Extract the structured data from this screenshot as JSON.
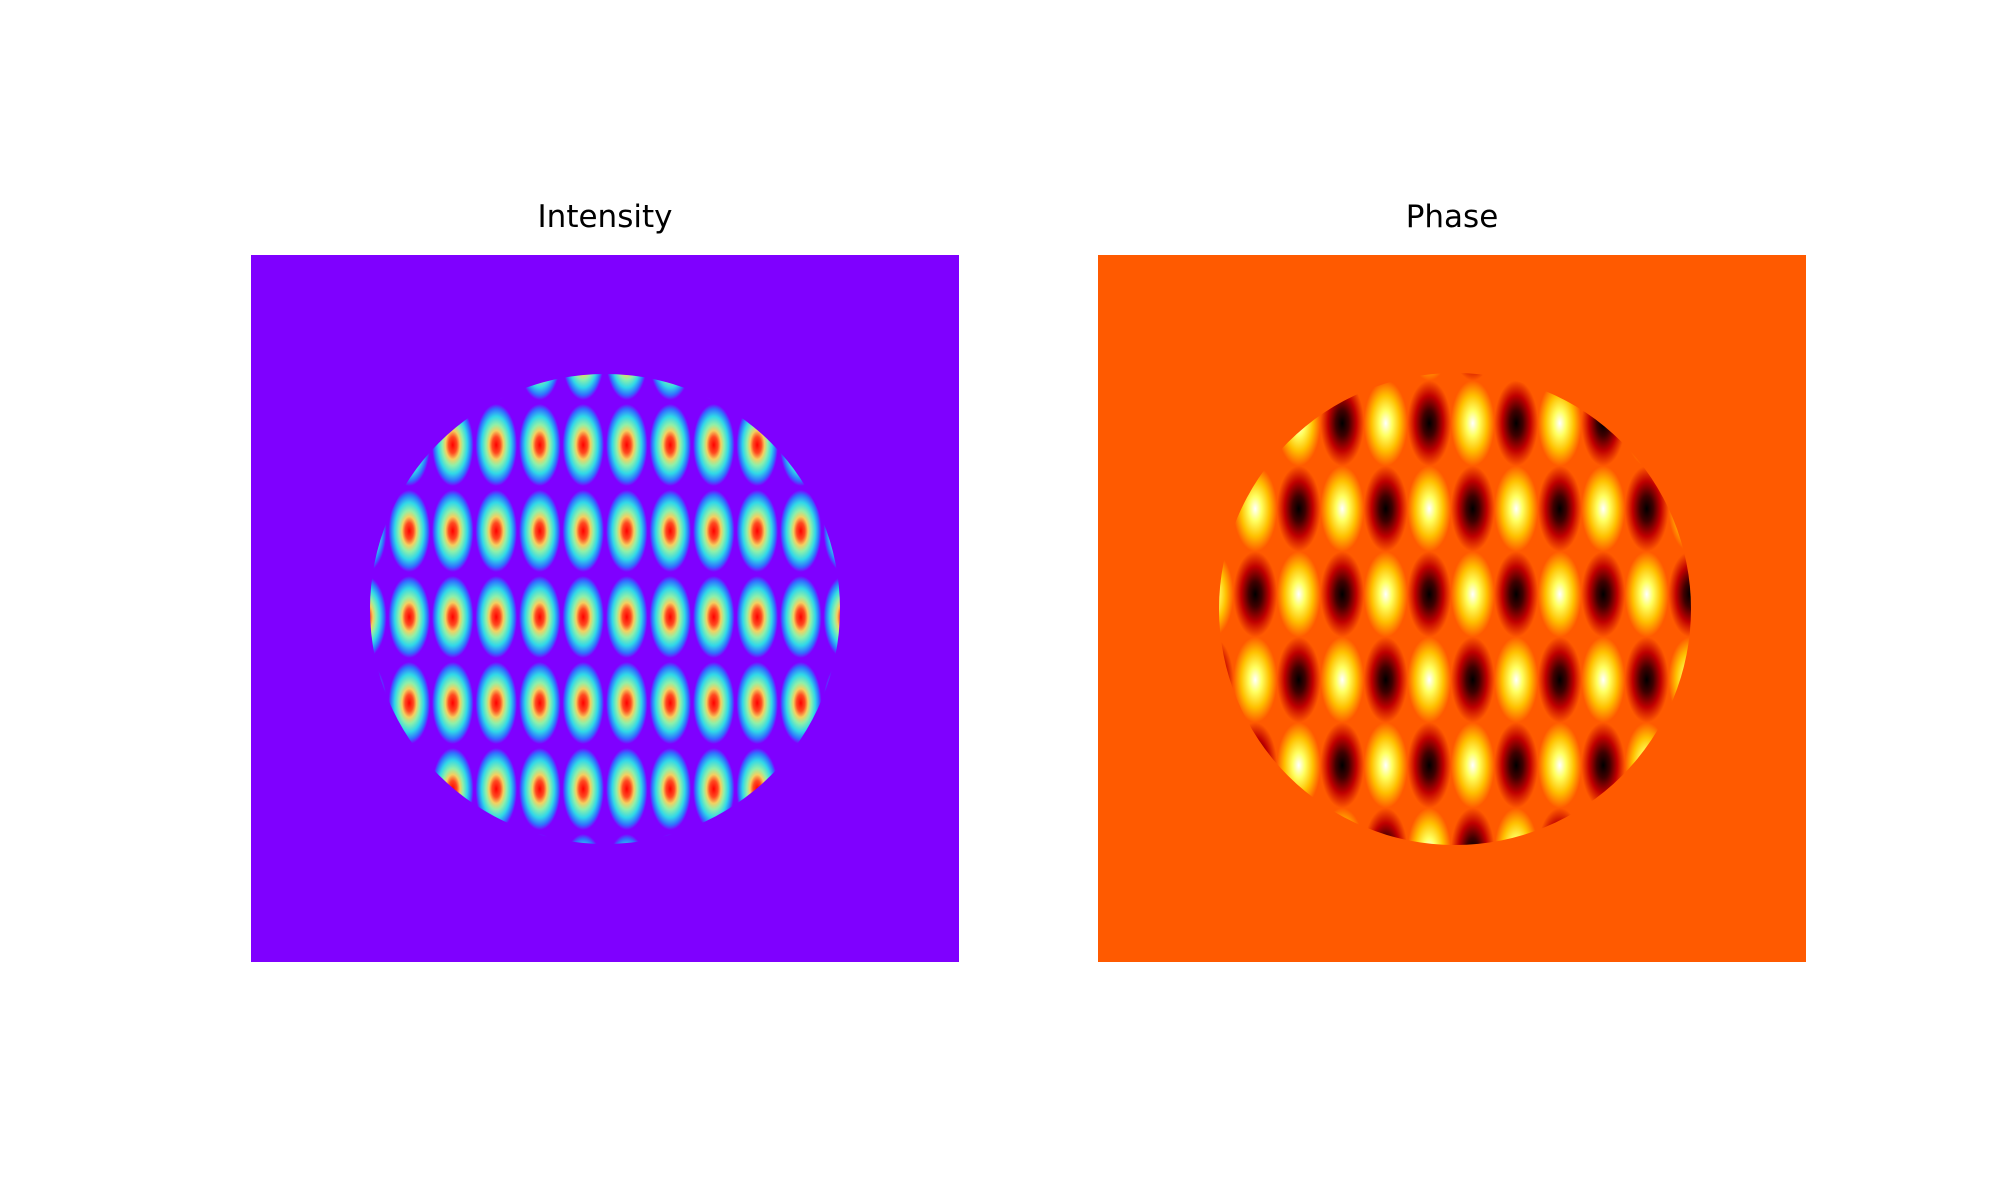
{
  "panels": [
    {
      "title": "Intensity"
    },
    {
      "title": "Phase"
    }
  ]
}
